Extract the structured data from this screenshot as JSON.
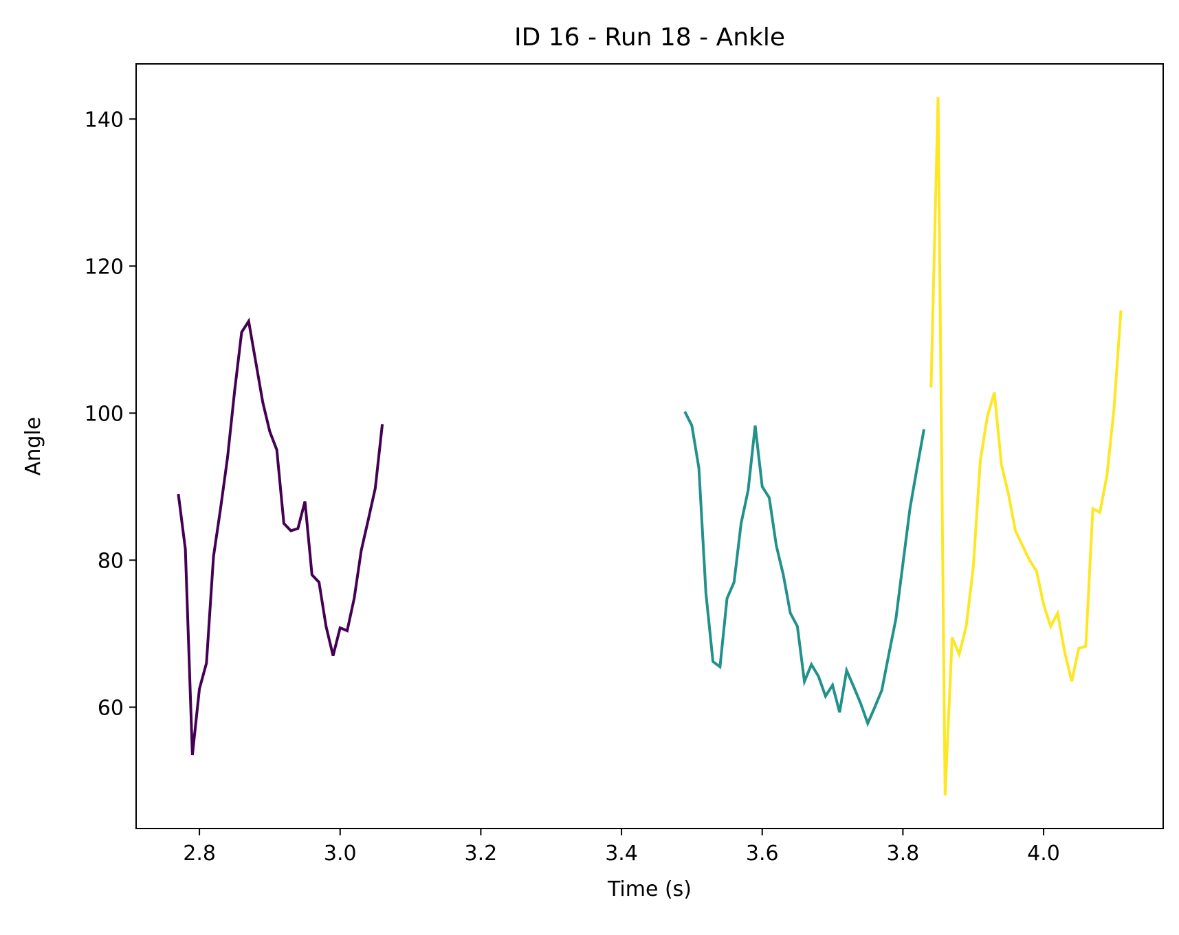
{
  "chart_data": {
    "type": "line",
    "title": "ID 16 - Run 18 - Ankle",
    "xlabel": "Time (s)",
    "ylabel": "Angle",
    "xlim": [
      2.71,
      4.17
    ],
    "ylim": [
      43.5,
      147.5
    ],
    "xticks": [
      2.8,
      3.0,
      3.2,
      3.4,
      3.6,
      3.8,
      4.0
    ],
    "xtick_labels": [
      "2.8",
      "3.0",
      "3.2",
      "3.4",
      "3.6",
      "3.8",
      "4.0"
    ],
    "yticks": [
      60,
      80,
      100,
      120,
      140
    ],
    "ytick_labels": [
      "60",
      "80",
      "100",
      "120",
      "140"
    ],
    "grid": false,
    "series": [
      {
        "color": "#440154",
        "x": [
          2.77,
          2.78,
          2.79,
          2.8,
          2.81,
          2.82,
          2.83,
          2.84,
          2.85,
          2.86,
          2.87,
          2.88,
          2.89,
          2.9,
          2.91,
          2.92,
          2.93,
          2.94,
          2.95,
          2.96,
          2.97,
          2.98,
          2.99,
          3.0,
          3.01,
          3.02,
          3.03,
          3.04,
          3.05,
          3.06
        ],
        "y": [
          89.0,
          81.5,
          53.5,
          62.5,
          66.0,
          80.5,
          87.0,
          94.0,
          103.0,
          111.0,
          112.5,
          107.0,
          101.5,
          97.5,
          95.0,
          85.0,
          84.0,
          84.3,
          88.0,
          78.0,
          77.0,
          71.0,
          67.0,
          70.8,
          70.4,
          74.8,
          81.3,
          85.5,
          89.8,
          98.5
        ]
      },
      {
        "color": "#21918c",
        "x": [
          3.49,
          3.5,
          3.51,
          3.52,
          3.53,
          3.54,
          3.55,
          3.56,
          3.57,
          3.58,
          3.59,
          3.6,
          3.61,
          3.62,
          3.63,
          3.64,
          3.65,
          3.66,
          3.67,
          3.68,
          3.69,
          3.7,
          3.71,
          3.72,
          3.73,
          3.74,
          3.75,
          3.76,
          3.77,
          3.78,
          3.79,
          3.8,
          3.81,
          3.82,
          3.83
        ],
        "y": [
          100.2,
          98.3,
          92.5,
          75.5,
          66.2,
          65.5,
          74.8,
          77.0,
          85.0,
          89.5,
          98.3,
          90.0,
          88.5,
          82.0,
          78.0,
          72.8,
          71.0,
          63.5,
          65.8,
          64.2,
          61.5,
          63.0,
          59.3,
          65.0,
          62.8,
          60.5,
          57.8,
          60.0,
          62.3,
          67.2,
          72.0,
          79.5,
          87.0,
          92.5,
          97.8
        ]
      },
      {
        "color": "#fde725",
        "x": [
          3.84,
          3.85,
          3.86,
          3.87,
          3.88,
          3.89,
          3.9,
          3.91,
          3.92,
          3.93,
          3.94,
          3.95,
          3.96,
          3.97,
          3.98,
          3.99,
          4.0,
          4.01,
          4.02,
          4.03,
          4.04,
          4.05,
          4.06,
          4.07,
          4.08,
          4.09,
          4.1,
          4.11
        ],
        "y": [
          103.5,
          143.0,
          48.0,
          69.5,
          67.2,
          71.0,
          79.0,
          93.5,
          99.5,
          102.8,
          93.0,
          89.0,
          84.0,
          82.0,
          80.0,
          78.5,
          74.0,
          71.0,
          72.8,
          67.5,
          63.5,
          68.0,
          68.3,
          87.0,
          86.5,
          91.5,
          100.5,
          114.0
        ]
      }
    ]
  }
}
